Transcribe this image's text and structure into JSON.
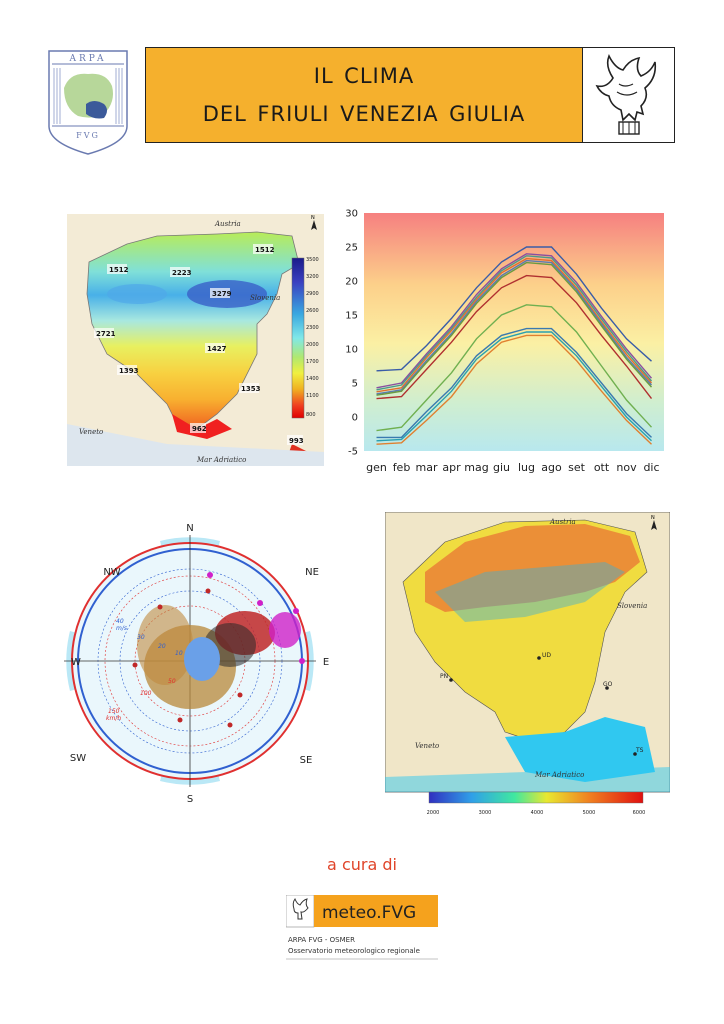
{
  "header": {
    "title_line1": "il clima",
    "title_line2": "del friuli venezia giulia",
    "arpa_logo_text": {
      "top": "ARPA",
      "bottom": "FVG"
    }
  },
  "map1": {
    "labels": {
      "country_top": "Austria",
      "country_right": "Slovenia",
      "region_left": "Veneto",
      "sea": "Mar Adriatico"
    },
    "values": [
      "1512",
      "1512",
      "2223",
      "3279",
      "2721",
      "1427",
      "1393",
      "1353",
      "962",
      "993"
    ],
    "legend": [
      "3500",
      "3200",
      "2900",
      "2600",
      "2300",
      "2000",
      "1700",
      "1400",
      "1100",
      "800"
    ],
    "north": "N"
  },
  "chart_data": {
    "type": "line",
    "categories": [
      "gen",
      "feb",
      "mar",
      "apr",
      "mag",
      "giu",
      "lug",
      "ago",
      "set",
      "ott",
      "nov",
      "dic"
    ],
    "ylim": [
      -5,
      30
    ],
    "yticks": [
      30,
      25,
      20,
      15,
      10,
      5,
      0,
      -5
    ],
    "series": [
      {
        "values": [
          6.8,
          7.0,
          10.5,
          14.5,
          19.0,
          22.8,
          25.0,
          25.0,
          21.0,
          16.0,
          11.5,
          8.2
        ],
        "color": "#3a5da8"
      },
      {
        "values": [
          4.3,
          5.0,
          9.3,
          13.3,
          18.0,
          21.8,
          24.0,
          23.7,
          19.8,
          14.8,
          10.0,
          5.7
        ],
        "color": "#8a4fa0"
      },
      {
        "values": [
          4.0,
          4.7,
          9.0,
          13.0,
          17.6,
          21.5,
          23.7,
          23.4,
          19.4,
          14.4,
          9.6,
          5.3
        ],
        "color": "#4a9a8a"
      },
      {
        "values": [
          3.7,
          4.3,
          8.7,
          12.7,
          17.3,
          21.2,
          23.3,
          23.0,
          19.0,
          14.0,
          9.2,
          5.0
        ],
        "color": "#e07030"
      },
      {
        "values": [
          3.4,
          4.0,
          8.3,
          12.3,
          17.0,
          20.8,
          23.0,
          22.7,
          18.7,
          13.7,
          8.8,
          4.7
        ],
        "color": "#5a7ab0"
      },
      {
        "values": [
          3.2,
          3.8,
          8.0,
          12.0,
          16.7,
          20.5,
          22.7,
          22.4,
          18.4,
          13.4,
          8.5,
          4.4
        ],
        "color": "#6a9a40"
      },
      {
        "values": [
          2.7,
          3.0,
          7.0,
          11.0,
          15.5,
          19.0,
          20.8,
          20.5,
          16.8,
          12.0,
          7.5,
          2.7
        ],
        "color": "#b03030"
      },
      {
        "values": [
          -2.0,
          -1.5,
          2.5,
          6.5,
          11.5,
          15.0,
          16.5,
          16.2,
          12.5,
          7.5,
          2.5,
          -1.5
        ],
        "color": "#70b050"
      },
      {
        "values": [
          -3.0,
          -3.0,
          0.8,
          4.3,
          9.0,
          12.0,
          13.0,
          13.0,
          9.5,
          5.0,
          0.5,
          -3.0
        ],
        "color": "#3a7ab0"
      },
      {
        "values": [
          -3.5,
          -3.3,
          0.2,
          3.8,
          8.5,
          11.5,
          12.5,
          12.5,
          9.0,
          4.5,
          0.0,
          -3.5
        ],
        "color": "#2aa0b0"
      },
      {
        "values": [
          -4.0,
          -3.8,
          -0.5,
          3.0,
          7.8,
          11.0,
          12.0,
          12.0,
          8.3,
          3.8,
          -0.5,
          -4.0
        ],
        "color": "#e08030"
      }
    ]
  },
  "wind_rose": {
    "directions": {
      "N": "N",
      "NE": "NE",
      "E": "E",
      "SE": "SE",
      "S": "S",
      "SW": "SW",
      "W": "W",
      "NW": "NW"
    },
    "ms_labels": [
      "10",
      "20",
      "30",
      "40"
    ],
    "ms_unit": "m/s",
    "kmh_labels": [
      "50",
      "100",
      "150"
    ],
    "kmh_unit": "km/h"
  },
  "map2": {
    "labels": {
      "country_top": "Austria",
      "country_right": "Slovenia",
      "region_left": "Veneto",
      "sea": "Mar Adriatico",
      "city_ud": "UD",
      "city_pn": "PN",
      "city_go": "GO",
      "city_ts": "TS"
    },
    "north": "N",
    "legend": [
      "2000",
      "3000",
      "4000",
      "5000",
      "6000"
    ]
  },
  "footer": {
    "a_cura_di": "a cura di",
    "logo_name": "meteo.FVG",
    "logo_line1": "ARPA FVG - OSMER",
    "logo_line2": "Osservatorio meteorologico regionale"
  },
  "colors": {
    "accent": "#f5b02d",
    "title_text": "#1a1a1a",
    "credit_text": "#e0452a"
  }
}
